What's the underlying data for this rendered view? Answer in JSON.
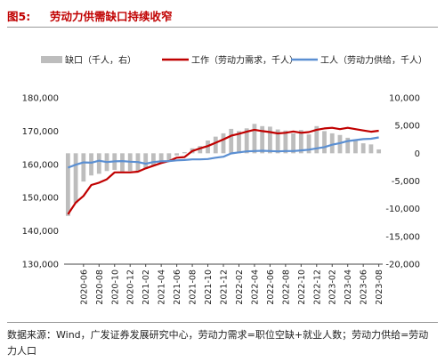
{
  "figure": {
    "number": "图5:",
    "title": "劳动力供需缺口持续收窄"
  },
  "source_note": "数据来源：Wind，广发证券发展研究中心，劳动力需求=职位空缺+就业人数；劳动力供给=劳动力人口",
  "colors": {
    "title": "#c00000",
    "gap_bar": "#bdbdbd",
    "demand_line": "#c00000",
    "supply_line": "#5b8fd2"
  },
  "chart_data": {
    "type": "bar+line",
    "legend": {
      "placement": "top",
      "entries": [
        "缺口（千人，右）",
        "工作（劳动力需求，千人）",
        "工人（劳动力供给，千人）"
      ]
    },
    "left_axis": {
      "ylim": [
        130000,
        180000
      ],
      "ticks": [
        130000,
        140000,
        150000,
        160000,
        170000,
        180000
      ],
      "tick_labels": [
        "130,000",
        "140,000",
        "150,000",
        "160,000",
        "170,000",
        "180,000"
      ]
    },
    "right_axis": {
      "ylim": [
        -20000,
        10000
      ],
      "ticks": [
        -20000,
        -15000,
        -10000,
        -5000,
        0,
        5000,
        10000
      ],
      "tick_labels": [
        "-20,000",
        "-15,000",
        "-10,000",
        "-5,000",
        "0",
        "5,000",
        "10,000"
      ]
    },
    "x_tick_labels": [
      "2020-06",
      "2020-08",
      "2020-10",
      "2020-12",
      "2021-02",
      "2021-04",
      "2021-06",
      "2021-08",
      "2021-10",
      "2021-12",
      "2022-02",
      "2022-04",
      "2022-06",
      "2022-08",
      "2022-10",
      "2022-12",
      "2023-02",
      "2023-04",
      "2023-06",
      "2023-08"
    ],
    "categories": [
      "2020-04",
      "2020-05",
      "2020-06",
      "2020-07",
      "2020-08",
      "2020-09",
      "2020-10",
      "2020-11",
      "2020-12",
      "2021-01",
      "2021-02",
      "2021-03",
      "2021-04",
      "2021-05",
      "2021-06",
      "2021-07",
      "2021-08",
      "2021-09",
      "2021-10",
      "2021-11",
      "2021-12",
      "2022-01",
      "2022-02",
      "2022-03",
      "2022-04",
      "2022-05",
      "2022-06",
      "2022-07",
      "2022-08",
      "2022-09",
      "2022-10",
      "2022-11",
      "2022-12",
      "2023-01",
      "2023-02",
      "2023-03",
      "2023-04",
      "2023-05",
      "2023-06",
      "2023-07",
      "2023-08"
    ],
    "series": [
      {
        "name": "缺口（千人，右）",
        "type": "bar",
        "axis": "right",
        "values": [
          -11300,
          -9000,
          -5100,
          -4000,
          -3700,
          -3200,
          -3000,
          -3300,
          -3200,
          -3200,
          -2800,
          -2300,
          -1800,
          -1400,
          -400,
          200,
          900,
          1300,
          2300,
          3000,
          3600,
          4400,
          4000,
          4500,
          5300,
          4900,
          4800,
          4300,
          4100,
          3600,
          4200,
          3400,
          4900,
          4000,
          3600,
          3300,
          2800,
          2400,
          1800,
          1600,
          700
        ]
      },
      {
        "name": "工作（劳动力需求，千人）",
        "type": "line",
        "axis": "left",
        "values": [
          145000,
          148500,
          150500,
          153800,
          154500,
          155500,
          157600,
          157600,
          157600,
          157800,
          158800,
          159600,
          160400,
          161000,
          162000,
          162200,
          164000,
          164800,
          165500,
          166500,
          167500,
          168600,
          169200,
          169800,
          170400,
          170000,
          169700,
          169300,
          169500,
          169900,
          169500,
          169700,
          170400,
          170800,
          171000,
          170600,
          171000,
          170600,
          170200,
          169800,
          170100
        ]
      },
      {
        "name": "工人（劳动力供给，千人）",
        "type": "line",
        "axis": "left",
        "values": [
          159000,
          159900,
          160600,
          160500,
          161100,
          160700,
          160900,
          161000,
          160800,
          160700,
          160200,
          160700,
          160900,
          161000,
          161200,
          161300,
          161500,
          161500,
          161600,
          162000,
          162300,
          163300,
          163600,
          163900,
          164000,
          164100,
          164000,
          163900,
          164000,
          164000,
          164200,
          164400,
          164800,
          165200,
          165900,
          166400,
          167000,
          167300,
          167600,
          167700,
          168100
        ]
      }
    ]
  }
}
